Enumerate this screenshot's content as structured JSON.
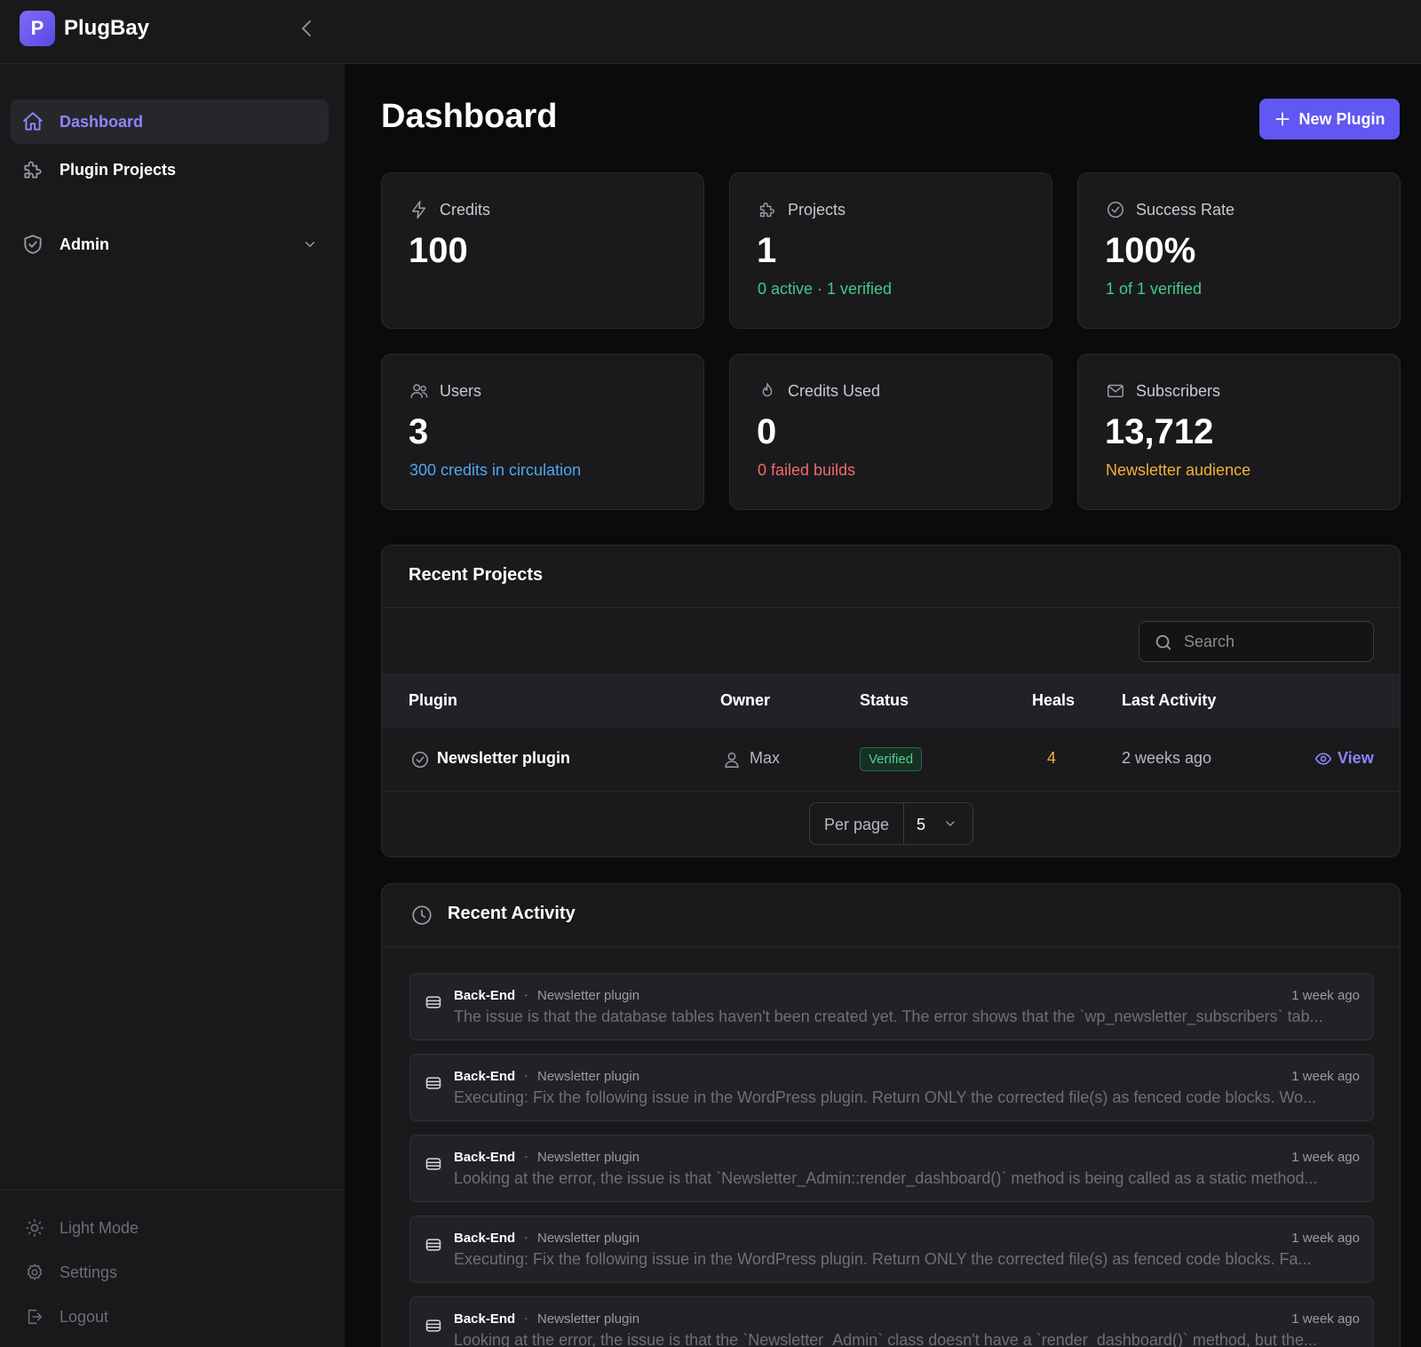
{
  "app": {
    "logo_letter": "P",
    "name": "PlugBay"
  },
  "sidebar": {
    "items": [
      {
        "label": "Dashboard",
        "icon": "home-icon",
        "active": true
      },
      {
        "label": "Plugin Projects",
        "icon": "puzzle-icon",
        "active": false
      },
      {
        "label": "Admin",
        "icon": "shield-icon",
        "active": false
      }
    ],
    "footer": [
      {
        "label": "Light Mode",
        "icon": "sun-icon"
      },
      {
        "label": "Settings",
        "icon": "gear-icon"
      },
      {
        "label": "Logout",
        "icon": "logout-icon"
      }
    ]
  },
  "header": {
    "title": "Dashboard",
    "new_button": "New Plugin"
  },
  "stats": [
    {
      "label": "Credits",
      "value": "100",
      "sub": "",
      "icon": "lightning-icon"
    },
    {
      "label": "Projects",
      "value": "1",
      "sub": "0 active · 1 verified",
      "icon": "puzzle-icon"
    },
    {
      "label": "Success Rate",
      "value": "100%",
      "sub": "1 of 1 verified",
      "icon": "check-circle-icon"
    },
    {
      "label": "Users",
      "value": "3",
      "sub": "300 credits in circulation",
      "icon": "users-icon"
    },
    {
      "label": "Credits Used",
      "value": "0",
      "sub": "0 failed builds",
      "icon": "flame-icon"
    },
    {
      "label": "Subscribers",
      "value": "13,712",
      "sub": "Newsletter audience",
      "icon": "mail-icon"
    }
  ],
  "colors": {
    "accent": "#6157f2",
    "green": "#43c98a",
    "blue": "#4ea8f0",
    "red": "#f06a6a",
    "amber": "#f2b134"
  },
  "recent_projects": {
    "title": "Recent Projects",
    "search_placeholder": "Search",
    "columns": [
      "Plugin",
      "Owner",
      "Status",
      "Heals",
      "Last Activity"
    ],
    "rows": [
      {
        "plugin": "Newsletter plugin",
        "owner": "Max",
        "status": "Verified",
        "heals": "4",
        "last_activity": "2 weeks ago",
        "action": "View"
      }
    ],
    "per_page_label": "Per page",
    "per_page_value": "5"
  },
  "recent_activity": {
    "title": "Recent Activity",
    "items": [
      {
        "type": "Back-End",
        "project": "Newsletter plugin",
        "time": "1 week ago",
        "message": "The issue is that the database tables haven't been created yet. The error shows that the `wp_newsletter_subscribers` tab..."
      },
      {
        "type": "Back-End",
        "project": "Newsletter plugin",
        "time": "1 week ago",
        "message": "Executing: Fix the following issue in the WordPress plugin. Return ONLY the corrected file(s) as fenced code blocks. Wo..."
      },
      {
        "type": "Back-End",
        "project": "Newsletter plugin",
        "time": "1 week ago",
        "message": "Looking at the error, the issue is that `Newsletter_Admin::render_dashboard()` method is being called as a static method..."
      },
      {
        "type": "Back-End",
        "project": "Newsletter plugin",
        "time": "1 week ago",
        "message": "Executing: Fix the following issue in the WordPress plugin. Return ONLY the corrected file(s) as fenced code blocks. Fa..."
      },
      {
        "type": "Back-End",
        "project": "Newsletter plugin",
        "time": "1 week ago",
        "message": "Looking at the error, the issue is that the `Newsletter_Admin` class doesn't have a `render_dashboard()` method, but the..."
      }
    ]
  }
}
